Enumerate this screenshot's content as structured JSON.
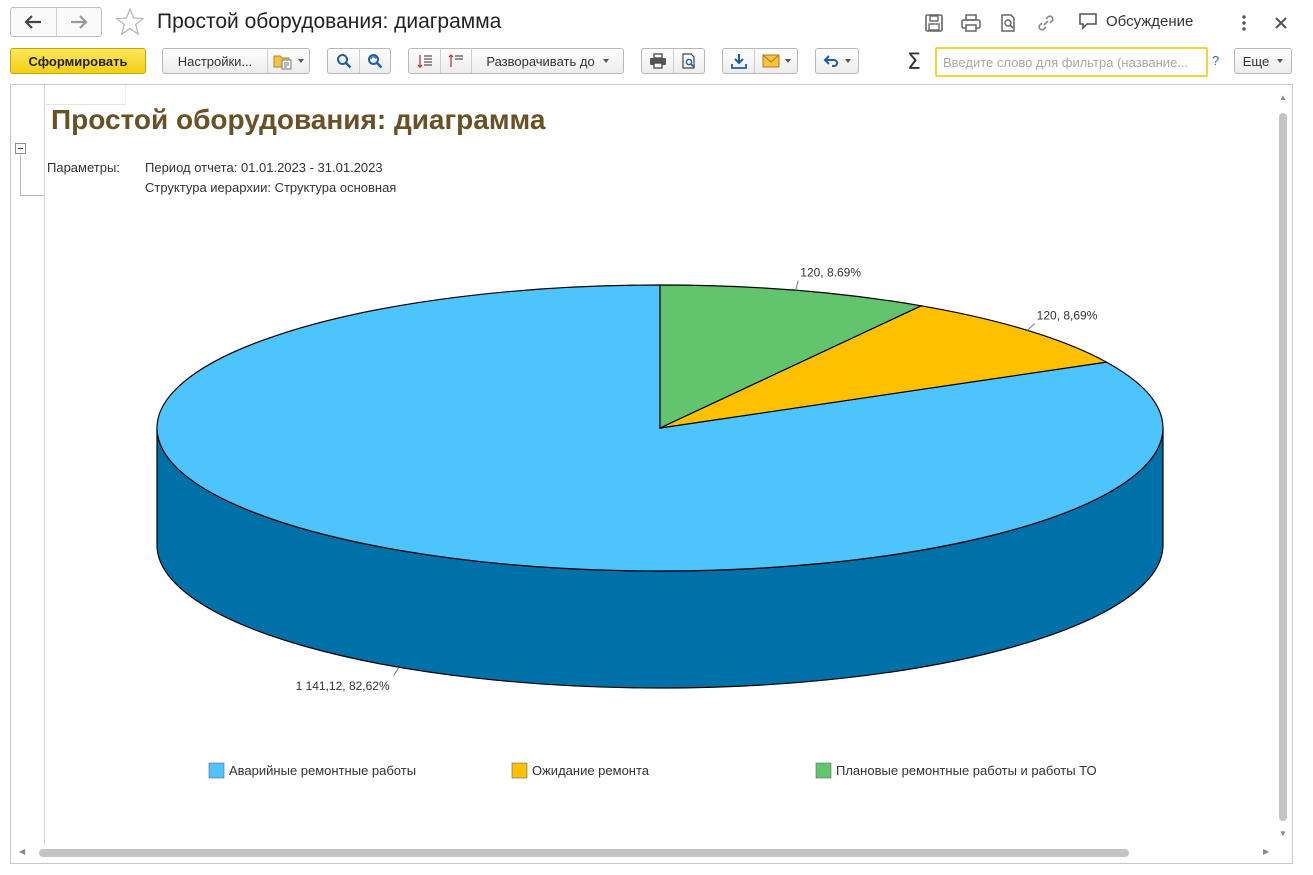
{
  "window": {
    "title": "Простой оборудования: диаграмма",
    "discussion_label": "Обсуждение"
  },
  "toolbar": {
    "generate_label": "Сформировать",
    "settings_label": "Настройки...",
    "expand_label": "Разворачивать до",
    "search_placeholder": "Введите слово для фильтра (название...",
    "help_label": "?",
    "more_label": "Еще",
    "sigma": "Σ"
  },
  "report": {
    "title": "Простой оборудования: диаграмма",
    "params_label": "Параметры:",
    "params": [
      "Период отчета: 01.01.2023 - 31.01.2023",
      "Структура иерархии: Структура основная"
    ]
  },
  "chart_data": {
    "type": "pie",
    "three_d": true,
    "slices": [
      {
        "name": "Аварийные ремонтные работы",
        "value": 1141.12,
        "percent": 82.62,
        "label": "1 141,12, 82,62%",
        "color": "#4ec4fd",
        "side_color": "#0070a8"
      },
      {
        "name": "Ожидание ремонта",
        "value": 120,
        "percent": 8.69,
        "label": "120, 8,69%",
        "color": "#ffc000",
        "side_color": "#c79600"
      },
      {
        "name": "Плановые ремонтные работы и работы ТО",
        "value": 120,
        "percent": 8.69,
        "label": "120, 8.69%",
        "color": "#63c46e",
        "side_color": "#3f9a49"
      }
    ],
    "legend_position": "bottom"
  },
  "colors": {
    "accent_button": "#f4cf13",
    "title_brown": "#6a5025",
    "search_border": "#f3d33a"
  }
}
